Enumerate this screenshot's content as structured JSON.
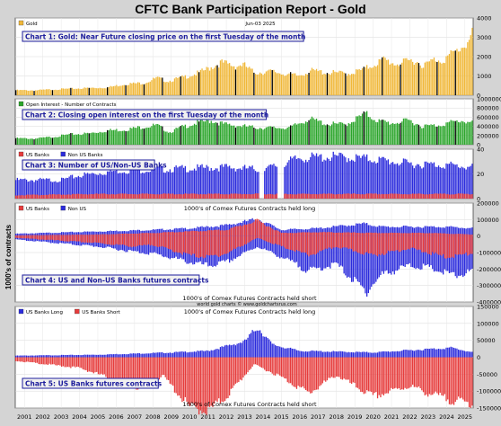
{
  "page": {
    "title": "CFTC Bank Participation Report - Gold",
    "side_ylabel": "1000's of contracts",
    "footer_source": "world gold charts © www.goldchartsrus.com"
  },
  "colors": {
    "gold": "#f0b83a",
    "green": "#2aa52a",
    "red": "#e63c3c",
    "blue": "#2b2bdc",
    "dark_bar": "#000000"
  },
  "x_axis": {
    "start_year": 2000.5,
    "end_year": 2025.45,
    "tick_labels": [
      "2001",
      "2002",
      "2003",
      "2004",
      "2005",
      "2006",
      "2007",
      "2008",
      "2009",
      "2010",
      "2011",
      "2012",
      "2013",
      "2014",
      "2015",
      "2016",
      "2017",
      "2018",
      "2019",
      "2020",
      "2021",
      "2022",
      "2023",
      "2024",
      "2025"
    ]
  },
  "chart_data": [
    {
      "type": "bar",
      "id": "chart1",
      "title": "Chart 1: Gold: Near Future closing price on the first Tuesday of the month",
      "legend": [
        {
          "name": "Gold",
          "color": "#f0b83a"
        }
      ],
      "date_label": "Jun-03  2025",
      "ylim": [
        0,
        4000
      ],
      "yticks": [
        0,
        1000,
        2000,
        3000,
        4000
      ],
      "series": [
        {
          "name": "Gold",
          "points": [
            [
              2000.5,
              280
            ],
            [
              2001.5,
              270
            ],
            [
              2002.5,
              320
            ],
            [
              2003.5,
              360
            ],
            [
              2004.5,
              400
            ],
            [
              2005.5,
              430
            ],
            [
              2006.5,
              620
            ],
            [
              2007.5,
              680
            ],
            [
              2008.2,
              950
            ],
            [
              2008.8,
              780
            ],
            [
              2009.5,
              950
            ],
            [
              2010.5,
              1230
            ],
            [
              2011.7,
              1800
            ],
            [
              2012.5,
              1600
            ],
            [
              2012.9,
              1700
            ],
            [
              2013.5,
              1250
            ],
            [
              2014.5,
              1300
            ],
            [
              2015.9,
              1070
            ],
            [
              2016.6,
              1350
            ],
            [
              2017.5,
              1250
            ],
            [
              2018.7,
              1200
            ],
            [
              2019.5,
              1420
            ],
            [
              2020.6,
              1970
            ],
            [
              2021.2,
              1730
            ],
            [
              2021.7,
              1800
            ],
            [
              2022.2,
              1940
            ],
            [
              2022.8,
              1650
            ],
            [
              2023.4,
              1990
            ],
            [
              2023.8,
              1920
            ],
            [
              2024.2,
              2200
            ],
            [
              2024.6,
              2450
            ],
            [
              2024.9,
              2700
            ],
            [
              2025.2,
              2950
            ],
            [
              2025.45,
              3400
            ]
          ]
        }
      ]
    },
    {
      "type": "bar",
      "id": "chart2",
      "title": "Chart 2: Closing open interest on the first Tuesday of the month",
      "legend": [
        {
          "name": "Open Interest - Number of Contracts",
          "color": "#2aa52a"
        }
      ],
      "ylim": [
        0,
        1000000
      ],
      "yticks": [
        0,
        200000,
        400000,
        600000,
        800000,
        1000000
      ],
      "series": [
        {
          "name": "Open Interest - Number of Contracts",
          "points": [
            [
              2000.5,
              150000
            ],
            [
              2001.5,
              140000
            ],
            [
              2002.5,
              180000
            ],
            [
              2003.5,
              240000
            ],
            [
              2004.5,
              260000
            ],
            [
              2005.5,
              330000
            ],
            [
              2006.5,
              350000
            ],
            [
              2007.5,
              420000
            ],
            [
              2008.2,
              450000
            ],
            [
              2008.9,
              290000
            ],
            [
              2009.5,
              400000
            ],
            [
              2010.5,
              520000
            ],
            [
              2011.2,
              560000
            ],
            [
              2011.9,
              470000
            ],
            [
              2012.5,
              450000
            ],
            [
              2013.5,
              400000
            ],
            [
              2014.5,
              390000
            ],
            [
              2015.5,
              400000
            ],
            [
              2016.5,
              600000
            ],
            [
              2017.5,
              480000
            ],
            [
              2018.5,
              470000
            ],
            [
              2019.6,
              720000
            ],
            [
              2020.3,
              550000
            ],
            [
              2021.0,
              500000
            ],
            [
              2022.0,
              560000
            ],
            [
              2022.7,
              430000
            ],
            [
              2023.5,
              450000
            ],
            [
              2024.3,
              520000
            ],
            [
              2024.9,
              560000
            ],
            [
              2025.45,
              500000
            ]
          ]
        }
      ]
    },
    {
      "type": "bar",
      "id": "chart3",
      "title": "Chart 3: Number of US/Non-US Banks",
      "legend": [
        {
          "name": "US Banks",
          "color": "#e63c3c"
        },
        {
          "name": "Non US Banks",
          "color": "#2b2bdc"
        }
      ],
      "ylim": [
        0,
        40
      ],
      "yticks": [
        0,
        20,
        40
      ],
      "gaps": [
        [
          2013.8,
          2014.0
        ],
        [
          2014.8,
          2015.1
        ]
      ],
      "series": [
        {
          "name": "Non US Banks",
          "points": [
            [
              2000.5,
              16
            ],
            [
              2003,
              16
            ],
            [
              2004,
              20
            ],
            [
              2006,
              24
            ],
            [
              2008,
              25
            ],
            [
              2010,
              26
            ],
            [
              2012,
              27
            ],
            [
              2014,
              25
            ],
            [
              2015.1,
              30
            ],
            [
              2016,
              35
            ],
            [
              2018,
              36
            ],
            [
              2020,
              34
            ],
            [
              2022,
              30
            ],
            [
              2024,
              29
            ],
            [
              2025.45,
              27
            ]
          ]
        },
        {
          "name": "US Banks",
          "points": [
            [
              2000.5,
              3
            ],
            [
              2005,
              4
            ],
            [
              2010,
              4
            ],
            [
              2015,
              4
            ],
            [
              2020,
              4
            ],
            [
              2025.45,
              4
            ]
          ]
        }
      ]
    },
    {
      "type": "bar",
      "id": "chart4",
      "title": "Chart 4: US and Non-US Banks futures contracts",
      "legend": [
        {
          "name": "US Banks",
          "color": "#e63c3c"
        },
        {
          "name": "Non US",
          "color": "#2b2bdc"
        }
      ],
      "annotation_long": "1000's of Comex Futures Contracts held long",
      "annotation_short": "1000's of Comex Futures Contracts held short",
      "ylim": [
        -400000,
        200000
      ],
      "yticks": [
        -400000,
        -300000,
        -200000,
        -100000,
        0,
        100000,
        200000
      ],
      "series": [
        {
          "name": "Non US long",
          "points": [
            [
              2000.5,
              15000
            ],
            [
              2005,
              30000
            ],
            [
              2008,
              40000
            ],
            [
              2010,
              50000
            ],
            [
              2012,
              70000
            ],
            [
              2013.7,
              110000
            ],
            [
              2015,
              40000
            ],
            [
              2017,
              50000
            ],
            [
              2019.5,
              80000
            ],
            [
              2020.5,
              60000
            ],
            [
              2022,
              60000
            ],
            [
              2024,
              60000
            ],
            [
              2025.45,
              50000
            ]
          ]
        },
        {
          "name": "US long",
          "points": [
            [
              2000.5,
              5000
            ],
            [
              2005,
              10000
            ],
            [
              2008,
              20000
            ],
            [
              2010,
              30000
            ],
            [
              2012,
              40000
            ],
            [
              2013.7,
              100000
            ],
            [
              2015,
              20000
            ],
            [
              2017,
              25000
            ],
            [
              2020,
              20000
            ],
            [
              2023,
              20000
            ],
            [
              2025.45,
              10000
            ]
          ]
        },
        {
          "name": "Non US short",
          "points": [
            [
              2000.5,
              -20000
            ],
            [
              2005,
              -60000
            ],
            [
              2007,
              -90000
            ],
            [
              2008,
              -100000
            ],
            [
              2010,
              -150000
            ],
            [
              2011,
              -170000
            ],
            [
              2012,
              -150000
            ],
            [
              2013.7,
              -60000
            ],
            [
              2015,
              -120000
            ],
            [
              2016.5,
              -200000
            ],
            [
              2018,
              -160000
            ],
            [
              2019.6,
              -320000
            ],
            [
              2020.5,
              -220000
            ],
            [
              2022,
              -170000
            ],
            [
              2023,
              -180000
            ],
            [
              2024.5,
              -230000
            ],
            [
              2025.45,
              -200000
            ]
          ]
        },
        {
          "name": "US short",
          "points": [
            [
              2000.5,
              -10000
            ],
            [
              2005,
              -40000
            ],
            [
              2007,
              -60000
            ],
            [
              2008,
              -50000
            ],
            [
              2010,
              -110000
            ],
            [
              2011,
              -120000
            ],
            [
              2012,
              -100000
            ],
            [
              2013.7,
              -10000
            ],
            [
              2015,
              -60000
            ],
            [
              2016.5,
              -110000
            ],
            [
              2018,
              -60000
            ],
            [
              2020,
              -110000
            ],
            [
              2022,
              -70000
            ],
            [
              2024,
              -120000
            ],
            [
              2025.45,
              -100000
            ]
          ]
        }
      ]
    },
    {
      "type": "bar",
      "id": "chart5",
      "title": "Chart 5: US Banks futures contracts",
      "legend": [
        {
          "name": "US Banks Long",
          "color": "#2b2bdc"
        },
        {
          "name": "US Banks Short",
          "color": "#e63c3c"
        }
      ],
      "annotation_long": "1000's of Comex Futures Contracts held long",
      "annotation_short": "1000's of Comex Futures Contracts held short",
      "ylim": [
        -150000,
        150000
      ],
      "yticks": [
        -150000,
        -100000,
        -50000,
        0,
        50000,
        100000,
        150000
      ],
      "series": [
        {
          "name": "US Banks Long",
          "points": [
            [
              2000.5,
              5000
            ],
            [
              2005,
              8000
            ],
            [
              2009,
              15000
            ],
            [
              2011,
              20000
            ],
            [
              2013,
              50000
            ],
            [
              2013.7,
              95000
            ],
            [
              2014.5,
              40000
            ],
            [
              2016,
              20000
            ],
            [
              2020,
              15000
            ],
            [
              2024.3,
              30000
            ],
            [
              2025.45,
              15000
            ]
          ]
        },
        {
          "name": "US Banks Short",
          "points": [
            [
              2000.5,
              -10000
            ],
            [
              2004,
              -30000
            ],
            [
              2007.5,
              -90000
            ],
            [
              2008.5,
              -50000
            ],
            [
              2010,
              -140000
            ],
            [
              2011,
              -150000
            ],
            [
              2012,
              -110000
            ],
            [
              2013.5,
              -20000
            ],
            [
              2014.8,
              -50000
            ],
            [
              2016.5,
              -100000
            ],
            [
              2018,
              -50000
            ],
            [
              2020,
              -110000
            ],
            [
              2022,
              -80000
            ],
            [
              2023,
              -100000
            ],
            [
              2024.3,
              -120000
            ],
            [
              2025.45,
              -130000
            ]
          ]
        }
      ]
    }
  ]
}
